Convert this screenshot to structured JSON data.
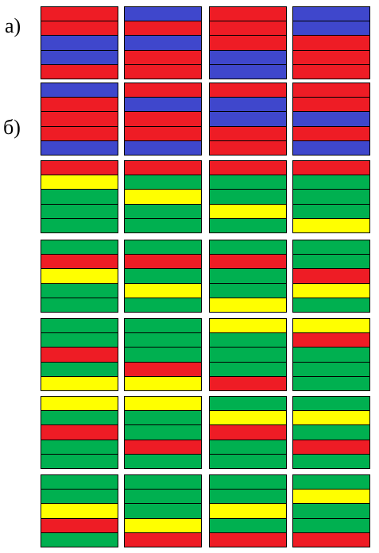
{
  "labels": {
    "a": "а)",
    "b": "б)"
  },
  "colors": {
    "R": "#ee1c25",
    "B": "#3f47cc",
    "G": "#00b050",
    "Y": "#ffff00"
  },
  "rows": [
    [
      [
        "R",
        "R",
        "B",
        "B",
        "R"
      ],
      [
        "B",
        "R",
        "B",
        "R",
        "R"
      ],
      [
        "R",
        "R",
        "R",
        "B",
        "B"
      ],
      [
        "B",
        "B",
        "R",
        "R",
        "R"
      ]
    ],
    [
      [
        "B",
        "R",
        "R",
        "R",
        "B"
      ],
      [
        "R",
        "B",
        "R",
        "R",
        "B"
      ],
      [
        "R",
        "B",
        "B",
        "R",
        "R"
      ],
      [
        "R",
        "R",
        "B",
        "R",
        "B"
      ]
    ],
    [
      [
        "R",
        "Y",
        "G",
        "G",
        "G"
      ],
      [
        "R",
        "G",
        "Y",
        "G",
        "G"
      ],
      [
        "R",
        "G",
        "G",
        "Y",
        "G"
      ],
      [
        "R",
        "G",
        "G",
        "G",
        "Y"
      ]
    ],
    [
      [
        "G",
        "R",
        "Y",
        "G",
        "G"
      ],
      [
        "G",
        "R",
        "G",
        "Y",
        "G"
      ],
      [
        "G",
        "R",
        "G",
        "G",
        "Y"
      ],
      [
        "G",
        "G",
        "R",
        "Y",
        "G"
      ]
    ],
    [
      [
        "G",
        "G",
        "R",
        "G",
        "Y"
      ],
      [
        "G",
        "G",
        "G",
        "R",
        "Y"
      ],
      [
        "Y",
        "G",
        "G",
        "G",
        "R"
      ],
      [
        "Y",
        "R",
        "G",
        "G",
        "G"
      ]
    ],
    [
      [
        "Y",
        "G",
        "R",
        "G",
        "G"
      ],
      [
        "Y",
        "G",
        "G",
        "R",
        "G"
      ],
      [
        "G",
        "Y",
        "R",
        "G",
        "G"
      ],
      [
        "G",
        "Y",
        "G",
        "R",
        "G"
      ]
    ],
    [
      [
        "G",
        "G",
        "Y",
        "R",
        "G"
      ],
      [
        "G",
        "G",
        "G",
        "Y",
        "R"
      ],
      [
        "G",
        "G",
        "Y",
        "G",
        "R"
      ],
      [
        "G",
        "Y",
        "G",
        "G",
        "R"
      ]
    ]
  ]
}
